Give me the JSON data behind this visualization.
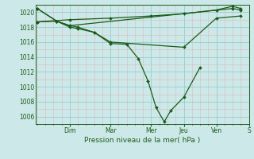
{
  "background_color": "#cce8e8",
  "grid_color_major": "#99cccc",
  "grid_color_minor": "#ddbaba",
  "line_color": "#1a5c1a",
  "xlabel": "Pression niveau de la mer( hPa )",
  "ylim": [
    1005.0,
    1021.0
  ],
  "yticks": [
    1006,
    1008,
    1010,
    1012,
    1014,
    1016,
    1018,
    1020
  ],
  "xlim": [
    -0.1,
    13.0
  ],
  "day_labels": [
    "Dim",
    "Mar",
    "Mer",
    "Jeu",
    "Ven",
    "S"
  ],
  "day_positions": [
    2.0,
    4.5,
    7.0,
    9.0,
    11.0,
    13.0
  ],
  "series": [
    {
      "x": [
        0.0,
        1.2,
        2.0,
        2.5,
        3.5,
        4.5,
        5.5,
        6.2,
        6.8,
        7.3,
        7.8,
        8.2,
        9.0,
        10.0
      ],
      "y": [
        1020.5,
        1018.8,
        1018.2,
        1018.0,
        1017.3,
        1015.8,
        1015.7,
        1013.8,
        1010.8,
        1007.2,
        1005.3,
        1006.8,
        1008.6,
        1012.6
      ]
    },
    {
      "x": [
        0.0,
        1.2,
        2.0,
        2.5,
        3.5,
        4.5,
        9.0,
        11.0,
        12.5
      ],
      "y": [
        1018.7,
        1018.8,
        1018.0,
        1017.8,
        1017.3,
        1016.0,
        1015.3,
        1019.2,
        1019.5
      ]
    },
    {
      "x": [
        0.0,
        2.0,
        4.5,
        7.0,
        9.0,
        11.0,
        12.0,
        12.5
      ],
      "y": [
        1018.7,
        1019.0,
        1019.2,
        1019.5,
        1019.8,
        1020.3,
        1020.8,
        1020.5
      ]
    },
    {
      "x": [
        0.0,
        1.2,
        2.0,
        12.0,
        12.5
      ],
      "y": [
        1020.5,
        1018.8,
        1018.2,
        1020.5,
        1020.3
      ]
    }
  ]
}
